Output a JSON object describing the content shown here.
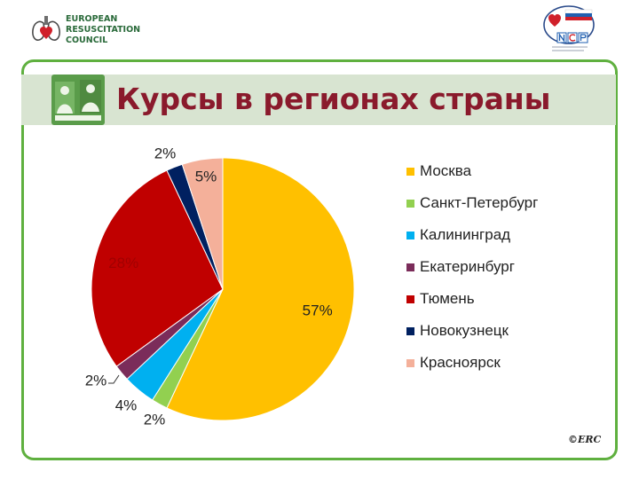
{
  "erc_logo": {
    "lines": [
      "EUROPEAN",
      "RESUSCITATION",
      "COUNCIL"
    ]
  },
  "title": "Курсы в регионах страны",
  "credit": "©ERC",
  "chart_data": {
    "type": "pie",
    "categories": [
      "Москва",
      "Санкт-Петербург",
      "Калининград",
      "Екатеринбург",
      "Тюмень",
      "Новокузнецк",
      "Красноярск"
    ],
    "values": [
      57,
      2,
      4,
      2,
      28,
      2,
      5
    ],
    "value_labels": [
      "57%",
      "2%",
      "4%",
      "2%",
      "28%",
      "2%",
      "5%"
    ],
    "colors": [
      "#ffc000",
      "#92d050",
      "#00b0f0",
      "#7b2c5a",
      "#c00000",
      "#002060",
      "#f4b09a"
    ],
    "legend_position": "right",
    "start": "12 o'clock",
    "direction": "clockwise"
  }
}
